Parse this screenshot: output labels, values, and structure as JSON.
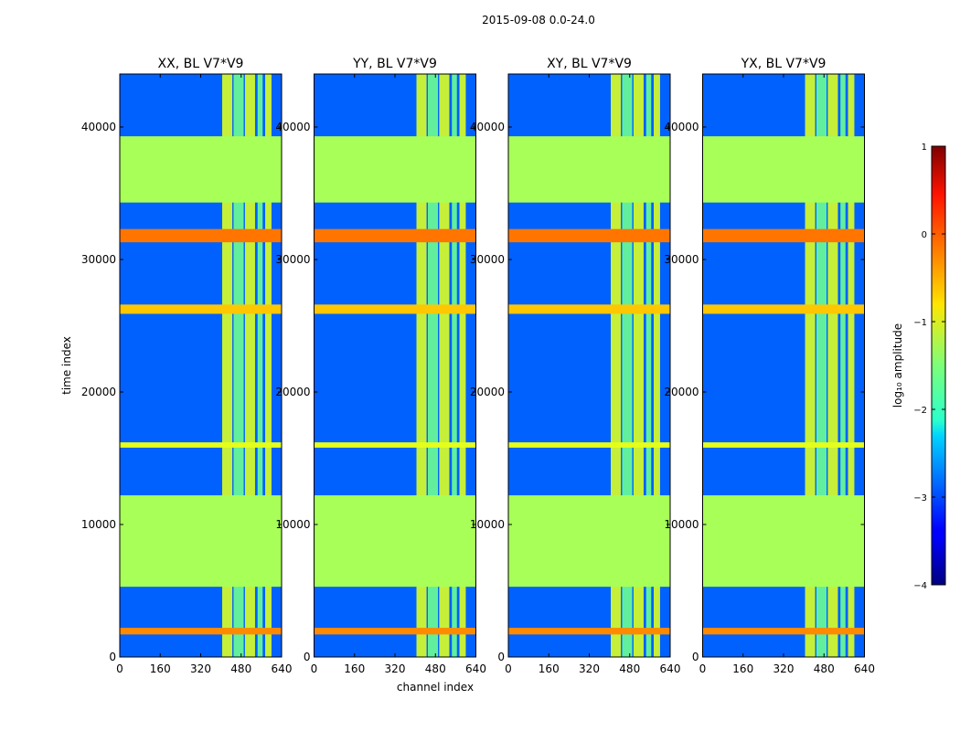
{
  "figure": {
    "suptitle": "2015-09-08 0.0-24.0",
    "xlabel": "channel index",
    "ylabel": "time index"
  },
  "colorbar": {
    "label": "log₁₀ amplitude",
    "ticks": [
      "1",
      "0",
      "−1",
      "−2",
      "−3",
      "−4"
    ],
    "vmin": -4,
    "vmax": 1,
    "colormap": "jet"
  },
  "chart_data": {
    "type": "heatmap",
    "xlim": [
      0,
      640
    ],
    "ylim": [
      0,
      44000
    ],
    "xticks": [
      "0",
      "160",
      "320",
      "480",
      "640"
    ],
    "yticks": [
      "0",
      "10000",
      "20000",
      "30000",
      "40000"
    ],
    "panels": [
      {
        "title": "XX, BL V7*V9"
      },
      {
        "title": "YY, BL V7*V9"
      },
      {
        "title": "XY, BL V7*V9"
      },
      {
        "title": "YX, BL V7*V9"
      }
    ],
    "noise_floor_log": -2.9,
    "flagged_time_ranges": [
      {
        "from": 5300,
        "to": 12200,
        "value_log": -1.3
      },
      {
        "from": 34300,
        "to": 39300,
        "value_log": -1.3
      }
    ],
    "strong_bands": [
      {
        "from": 31300,
        "to": 32300,
        "value_log": -0.2
      },
      {
        "from": 25900,
        "to": 26600,
        "value_log": -0.6
      },
      {
        "from": 15800,
        "to": 16200,
        "value_log": -1.0
      },
      {
        "from": 1700,
        "to": 2200,
        "value_log": -0.3
      }
    ],
    "rfi_channel_ranges": [
      {
        "from": 405,
        "to": 445
      },
      {
        "from": 450,
        "to": 490
      },
      {
        "from": 495,
        "to": 535
      },
      {
        "from": 545,
        "to": 565
      },
      {
        "from": 575,
        "to": 600
      }
    ]
  }
}
